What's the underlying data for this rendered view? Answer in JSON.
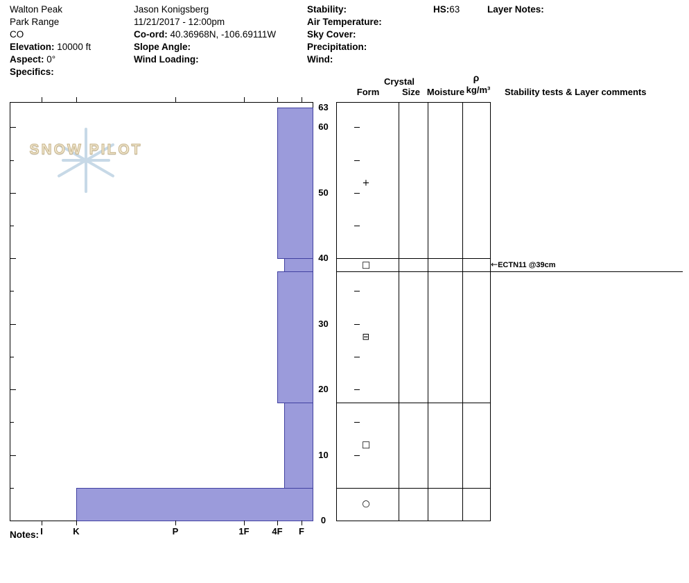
{
  "meta": {
    "location": {
      "name": "Walton Peak",
      "range": "Park Range",
      "state": "CO",
      "elevation_label": "Elevation:",
      "elevation_value": "10000 ft",
      "aspect_label": "Aspect:",
      "aspect_value": "0°",
      "specifics_label": "Specifics:"
    },
    "observer": {
      "name": "Jason Konigsberg",
      "datetime": "11/21/2017 - 12:00pm",
      "coord_label": "Co-ord:",
      "coord_value": "40.36968N, -106.69111W",
      "slope_angle_label": "Slope Angle:",
      "wind_loading_label": "Wind Loading:"
    },
    "conditions": {
      "stability_label": "Stability:",
      "air_temp_label": "Air Temperature:",
      "sky_cover_label": "Sky Cover:",
      "precipitation_label": "Precipitation:",
      "wind_label": "Wind:"
    },
    "hs_label": "HS:",
    "hs_value": "63",
    "layer_notes_label": "Layer Notes:"
  },
  "panel": {
    "crystal": "Crystal",
    "form": "Form",
    "size": "Size",
    "moisture": "Moisture",
    "rho": "ρ",
    "rho_units": "kg/m³",
    "comments_header": "Stability tests & Layer comments"
  },
  "logo": {
    "text": "SNOW PILOT"
  },
  "notes_label": "Notes:",
  "chart_data": {
    "type": "bar",
    "subtype": "snow-hardness-profile",
    "orientation": "horizontal",
    "depth_axis": {
      "unit": "cm",
      "min": 0,
      "max": 63,
      "tick_labels": [
        63,
        60,
        50,
        40,
        30,
        20,
        10,
        0
      ],
      "minor_tick_step_cm": 5
    },
    "hardness_axis": {
      "tick_labels": [
        "I",
        "K",
        "P",
        "1F",
        "4F",
        "F"
      ],
      "note": "hand hardness, harder to the left"
    },
    "total_depth_cm": 63,
    "layers": [
      {
        "top_cm": 63,
        "bottom_cm": 40,
        "hardness": "4F",
        "grain_form_symbol": "+",
        "grain_form": "precipitation-particles"
      },
      {
        "top_cm": 40,
        "bottom_cm": 38,
        "hardness": "4F-",
        "grain_form_symbol": "□",
        "grain_form": "facets"
      },
      {
        "top_cm": 38,
        "bottom_cm": 18,
        "hardness": "4F",
        "grain_form_symbol": "⊟",
        "grain_form": "mixed-forms"
      },
      {
        "top_cm": 18,
        "bottom_cm": 5,
        "hardness": "4F-",
        "grain_form_symbol": "□",
        "grain_form": "facets"
      },
      {
        "top_cm": 5,
        "bottom_cm": 0,
        "hardness": "K",
        "grain_form_symbol": "○",
        "grain_form": "rounds"
      }
    ],
    "stability_tests": [
      {
        "label": "ECTN11 @39cm",
        "depth_cm": 39
      }
    ],
    "bar_fill": "#9b9bdb",
    "bar_border": "#4040a0"
  }
}
